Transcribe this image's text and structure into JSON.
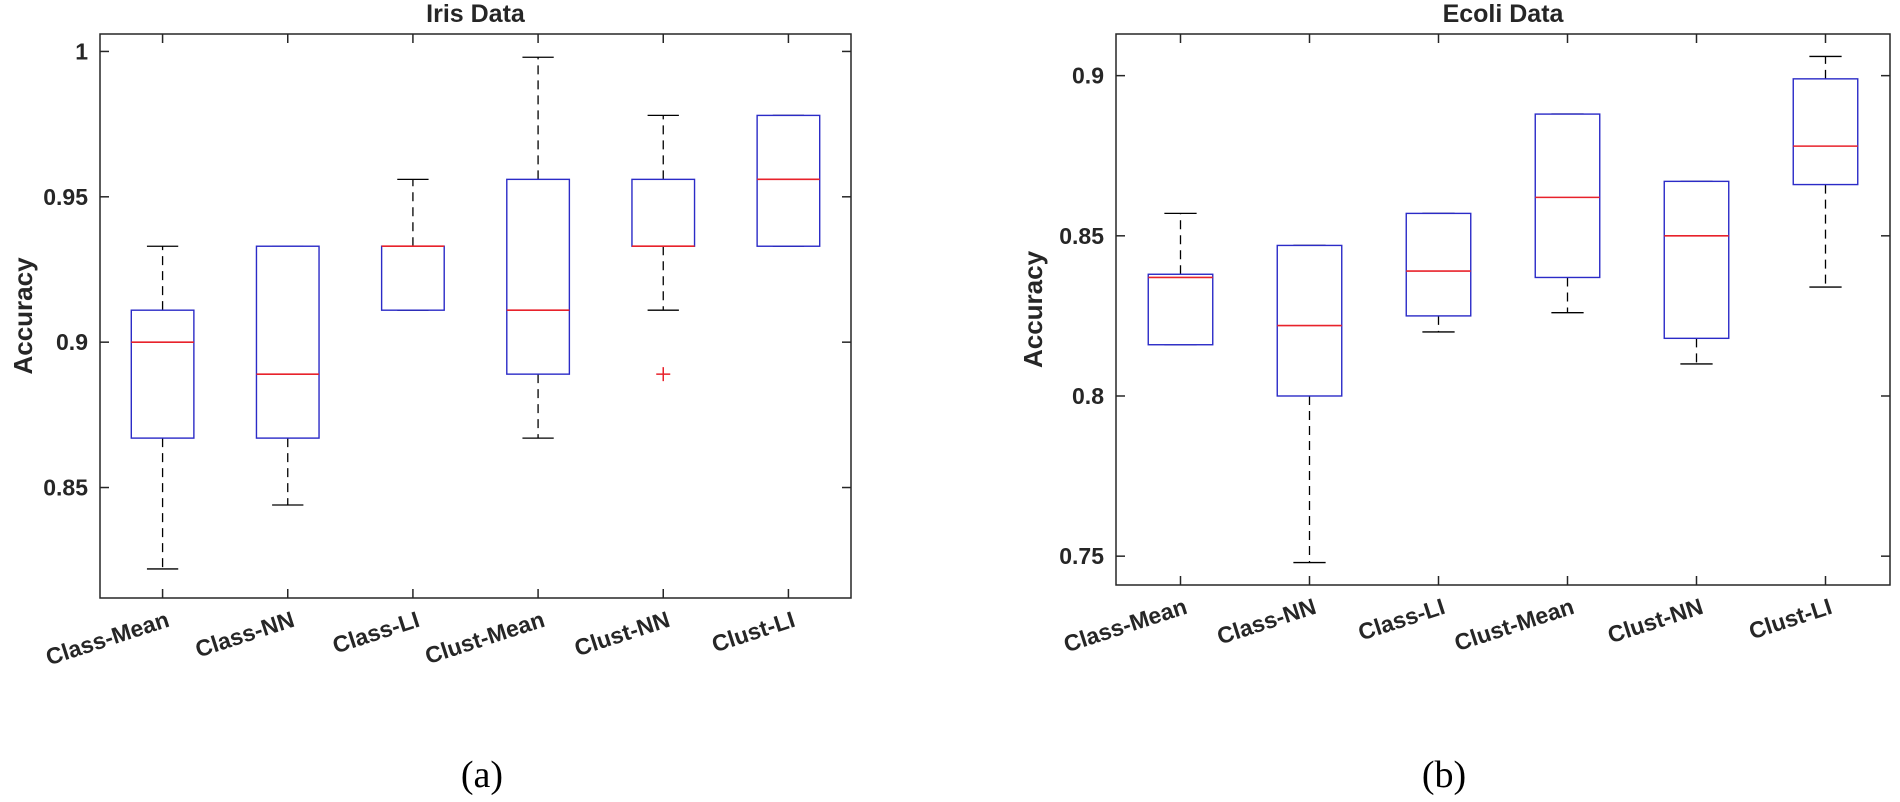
{
  "chart_data": [
    {
      "type": "boxplot",
      "title": "Iris Data",
      "xlabel": "",
      "ylabel": "Accuracy",
      "ylim": [
        0.812,
        1.006
      ],
      "yticks": [
        0.85,
        0.9,
        0.95,
        1
      ],
      "ytick_labels": [
        "0.85",
        "0.9",
        "0.95",
        "1"
      ],
      "categories": [
        "Class-Mean",
        "Class-NN",
        "Class-LI",
        "Clust-Mean",
        "Clust-NN",
        "Clust-LI"
      ],
      "boxes": [
        {
          "whisker_low": 0.822,
          "q1": 0.867,
          "median": 0.9,
          "q3": 0.911,
          "whisker_high": 0.933,
          "outliers": []
        },
        {
          "whisker_low": 0.844,
          "q1": 0.867,
          "median": 0.889,
          "q3": 0.933,
          "whisker_high": 0.933,
          "outliers": []
        },
        {
          "whisker_low": 0.911,
          "q1": 0.911,
          "median": 0.933,
          "q3": 0.933,
          "whisker_high": 0.956,
          "outliers": []
        },
        {
          "whisker_low": 0.867,
          "q1": 0.889,
          "median": 0.911,
          "q3": 0.956,
          "whisker_high": 0.998,
          "outliers": []
        },
        {
          "whisker_low": 0.911,
          "q1": 0.933,
          "median": 0.933,
          "q3": 0.956,
          "whisker_high": 0.978,
          "outliers": [
            0.889
          ]
        },
        {
          "whisker_low": 0.933,
          "q1": 0.933,
          "median": 0.956,
          "q3": 0.978,
          "whisker_high": 0.978,
          "outliers": []
        }
      ],
      "caption": "(a)"
    },
    {
      "type": "boxplot",
      "title": "Ecoli Data",
      "xlabel": "",
      "ylabel": "Accuracy",
      "ylim": [
        0.741,
        0.913
      ],
      "yticks": [
        0.75,
        0.8,
        0.85,
        0.9
      ],
      "ytick_labels": [
        "0.75",
        "0.8",
        "0.85",
        "0.9"
      ],
      "categories": [
        "Class-Mean",
        "Class-NN",
        "Class-LI",
        "Clust-Mean",
        "Clust-NN",
        "Clust-LI"
      ],
      "boxes": [
        {
          "whisker_low": 0.816,
          "q1": 0.816,
          "median": 0.837,
          "q3": 0.838,
          "whisker_high": 0.857,
          "outliers": []
        },
        {
          "whisker_low": 0.748,
          "q1": 0.8,
          "median": 0.822,
          "q3": 0.847,
          "whisker_high": 0.847,
          "outliers": []
        },
        {
          "whisker_low": 0.82,
          "q1": 0.825,
          "median": 0.839,
          "q3": 0.857,
          "whisker_high": 0.857,
          "outliers": []
        },
        {
          "whisker_low": 0.826,
          "q1": 0.837,
          "median": 0.862,
          "q3": 0.888,
          "whisker_high": 0.888,
          "outliers": []
        },
        {
          "whisker_low": 0.81,
          "q1": 0.818,
          "median": 0.85,
          "q3": 0.867,
          "whisker_high": 0.867,
          "outliers": []
        },
        {
          "whisker_low": 0.834,
          "q1": 0.866,
          "median": 0.878,
          "q3": 0.899,
          "whisker_high": 0.906,
          "outliers": []
        }
      ],
      "caption": "(b)"
    }
  ],
  "colors": {
    "box": "#2b2bc7",
    "median": "#e8222b",
    "whisker": "#000000",
    "outlier": "#e8222b",
    "axis": "#262626"
  }
}
